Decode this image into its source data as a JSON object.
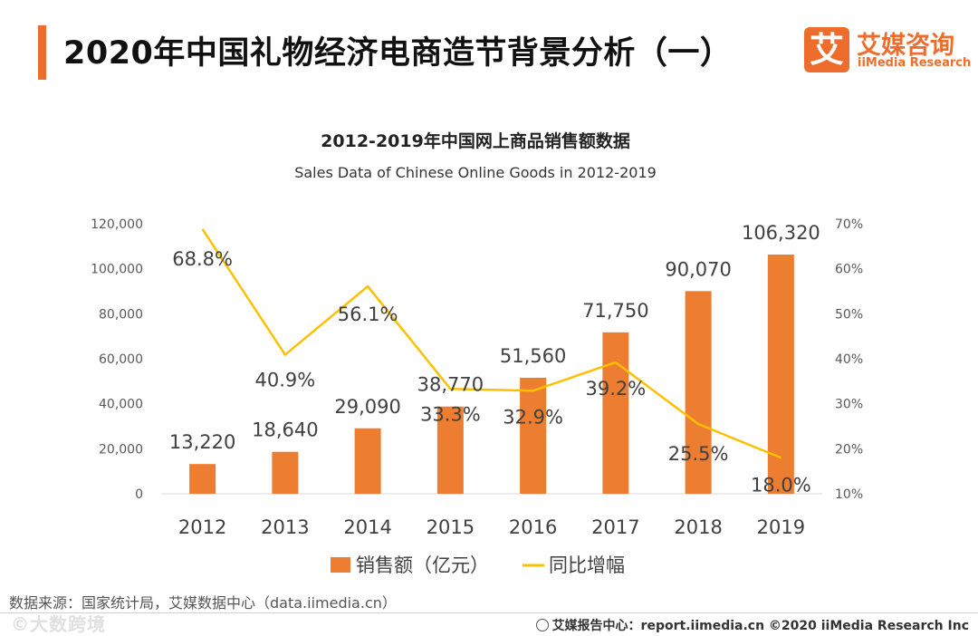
{
  "header": {
    "title": "2020年中国礼物经济电商造节背景分析（一）",
    "logo_mark": "艾",
    "logo_cn": "艾媒咨询",
    "logo_en": "iiMedia Research"
  },
  "colors": {
    "accent": "#ee6d2c",
    "bar": "#ed7d31",
    "line": "#ffc000"
  },
  "chart_data": {
    "type": "bar",
    "title": "2012-2019年中国网上商品销售额数据",
    "subtitle": "Sales Data of Chinese Online Goods in 2012-2019",
    "categories": [
      "2012",
      "2013",
      "2014",
      "2015",
      "2016",
      "2017",
      "2018",
      "2019"
    ],
    "series": [
      {
        "name": "销售额（亿元）",
        "type": "bar",
        "axis": "left",
        "values": [
          13220,
          18640,
          29090,
          38770,
          51560,
          71750,
          90070,
          106320
        ],
        "labels": [
          "13,220",
          "18,640",
          "29,090",
          "38,770",
          "51,560",
          "71,750",
          "90,070",
          "106,320"
        ]
      },
      {
        "name": "同比增幅",
        "type": "line",
        "axis": "right",
        "values": [
          68.8,
          40.9,
          56.1,
          33.3,
          32.9,
          39.2,
          25.5,
          18.0
        ],
        "labels": [
          "68.8%",
          "40.9%",
          "56.1%",
          "33.3%",
          "32.9%",
          "39.2%",
          "25.5%",
          "18.0%"
        ]
      }
    ],
    "ylim_left": [
      0,
      120000
    ],
    "yticks_left": [
      "0",
      "20,000",
      "40,000",
      "60,000",
      "80,000",
      "100,000",
      "120,000"
    ],
    "ylim_right": [
      10,
      70
    ],
    "yticks_right": [
      "10%",
      "20%",
      "30%",
      "40%",
      "50%",
      "60%",
      "70%"
    ],
    "legend_position": "bottom",
    "grid": false
  },
  "source": "数据来源：国家统计局，艾媒数据中心（data.iimedia.cn）",
  "watermark": "©大数跨境",
  "footer": "艾媒报告中心：report.iimedia.cn  ©2020  iiMedia Research  Inc"
}
